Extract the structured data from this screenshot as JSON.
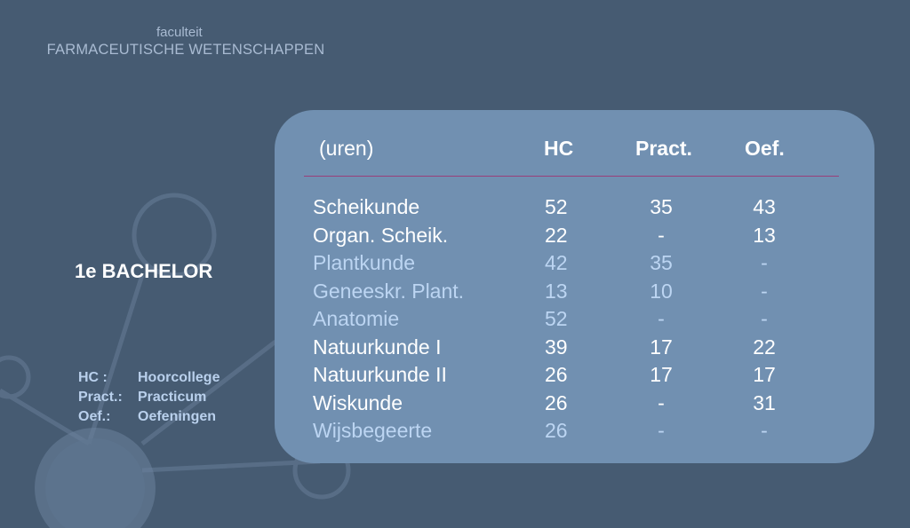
{
  "header": {
    "subtitle": "faculteit",
    "title": "FARMACEUTISCHE WETENSCHAPPEN"
  },
  "level": "1e BACHELOR",
  "legend": [
    {
      "abbr": "HC :",
      "full": "Hoorcollege"
    },
    {
      "abbr": "Pract.:",
      "full": "Practicum"
    },
    {
      "abbr": "Oef.:",
      "full": "Oefeningen"
    }
  ],
  "table": {
    "headers": {
      "label": "(uren)",
      "hc": "HC",
      "pract": "Pract.",
      "oef": "Oef."
    },
    "rows": [
      {
        "name": "Scheikunde",
        "hc": "52",
        "pract": "35",
        "oef": "43",
        "style": "white"
      },
      {
        "name": "Organ. Scheik.",
        "hc": "22",
        "pract": "-",
        "oef": "13",
        "style": "white"
      },
      {
        "name": "Plantkunde",
        "hc": "42",
        "pract": "35",
        "oef": "-",
        "style": "light"
      },
      {
        "name": "Geneeskr. Plant.",
        "hc": "13",
        "pract": "10",
        "oef": "-",
        "style": "light"
      },
      {
        "name": "Anatomie",
        "hc": "52",
        "pract": "-",
        "oef": "-",
        "style": "light"
      },
      {
        "name": "Natuurkunde I",
        "hc": "39",
        "pract": "17",
        "oef": "22",
        "style": "white"
      },
      {
        "name": "Natuurkunde II",
        "hc": "26",
        "pract": "17",
        "oef": "17",
        "style": "white"
      },
      {
        "name": "Wiskunde",
        "hc": "26",
        "pract": "-",
        "oef": "31",
        "style": "white"
      },
      {
        "name": "Wijsbegeerte",
        "hc": "26",
        "pract": "-",
        "oef": "-",
        "style": "light"
      }
    ]
  }
}
